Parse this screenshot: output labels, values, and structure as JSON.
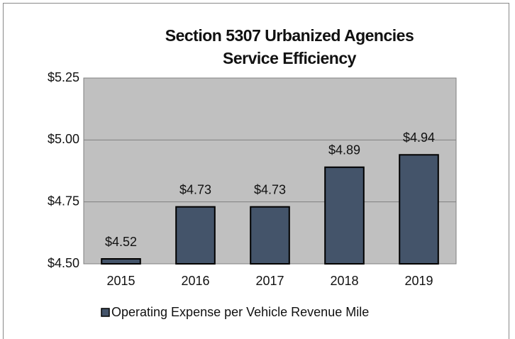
{
  "chart_data": {
    "type": "bar",
    "title": [
      "Section 5307 Urbanized Agencies",
      "Service Efficiency"
    ],
    "categories": [
      "2015",
      "2016",
      "2017",
      "2018",
      "2019"
    ],
    "series": [
      {
        "name": "Operating Expense per Vehicle Revenue Mile",
        "color": "#44546a",
        "values": [
          4.52,
          4.73,
          4.73,
          4.89,
          4.94
        ],
        "value_labels": [
          "$4.52",
          "$4.73",
          "$4.73",
          "$4.89",
          "$4.94"
        ]
      }
    ],
    "ylim": [
      4.5,
      5.25
    ],
    "yticks": [
      {
        "value": 4.5,
        "label": "$4.50"
      },
      {
        "value": 4.75,
        "label": "$4.75"
      },
      {
        "value": 5.0,
        "label": "$5.00"
      },
      {
        "value": 5.25,
        "label": "$5.25"
      }
    ],
    "grid": true,
    "legend": "bottom"
  }
}
